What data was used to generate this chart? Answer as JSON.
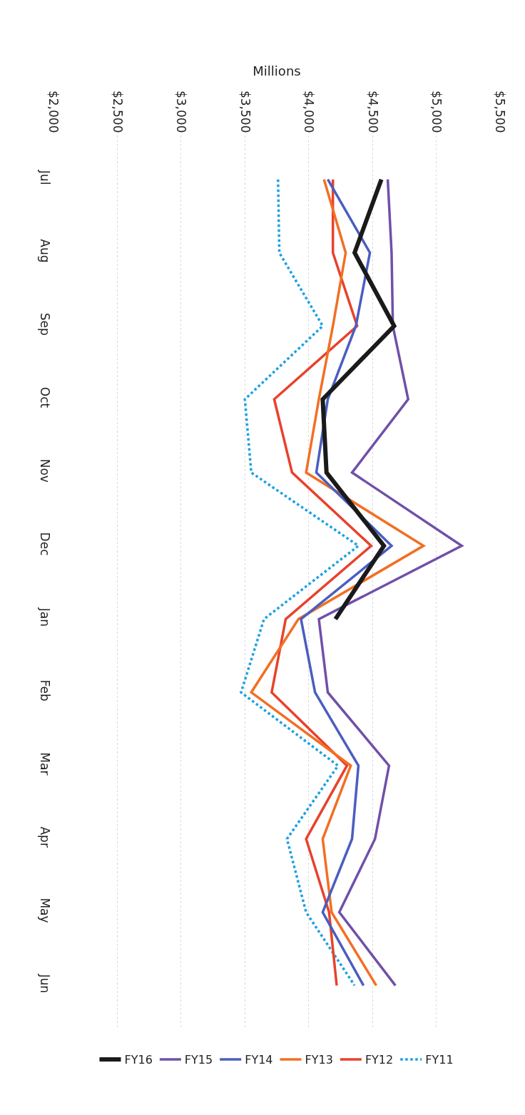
{
  "chart_data": {
    "type": "line",
    "orientation": "horizontal",
    "xlabel": "Millions",
    "categories": [
      "Jul",
      "Aug",
      "Sep",
      "Oct",
      "Nov",
      "Dec",
      "Jan",
      "Feb",
      "Mar",
      "Apr",
      "May",
      "Jun"
    ],
    "xlim": [
      2000,
      5500
    ],
    "xticks": [
      {
        "value": 2000,
        "label": "$2,000"
      },
      {
        "value": 2500,
        "label": "$2,500"
      },
      {
        "value": 3000,
        "label": "$3,000"
      },
      {
        "value": 3500,
        "label": "$3,500"
      },
      {
        "value": 4000,
        "label": "$4,000"
      },
      {
        "value": 4500,
        "label": "$4,500"
      },
      {
        "value": 5000,
        "label": "$5,000"
      },
      {
        "value": 5500,
        "label": "$5,500"
      }
    ],
    "grid": "x",
    "legend": "bottom",
    "marker": "none",
    "series": [
      {
        "name": "FY11",
        "color": "#1ba1e2",
        "line_style": "dotted",
        "values": [
          3760,
          3770,
          4110,
          3500,
          3550,
          4390,
          3650,
          3470,
          4230,
          3830,
          3980,
          4360
        ]
      },
      {
        "name": "FY12",
        "color": "#e8412c",
        "values": [
          4190,
          4190,
          4380,
          3730,
          3870,
          4490,
          3820,
          3710,
          4300,
          3980,
          4160,
          4220
        ]
      },
      {
        "name": "FY13",
        "color": "#f26f24",
        "values": [
          4120,
          4290,
          4190,
          4080,
          3980,
          4900,
          3920,
          3550,
          4330,
          4110,
          4180,
          4530
        ]
      },
      {
        "name": "FY14",
        "color": "#4a5ec0",
        "values": [
          4150,
          4480,
          4370,
          4150,
          4060,
          4650,
          3940,
          4050,
          4390,
          4340,
          4110,
          4430
        ]
      },
      {
        "name": "FY15",
        "color": "#7050a8",
        "values": [
          4620,
          4650,
          4660,
          4780,
          4340,
          5200,
          4080,
          4150,
          4630,
          4520,
          4240,
          4680
        ]
      },
      {
        "name": "FY16",
        "color": "#1a1a1a",
        "values": [
          4570,
          4360,
          4670,
          4110,
          4140,
          4590,
          4210,
          null,
          null,
          null,
          null,
          null
        ]
      }
    ]
  }
}
